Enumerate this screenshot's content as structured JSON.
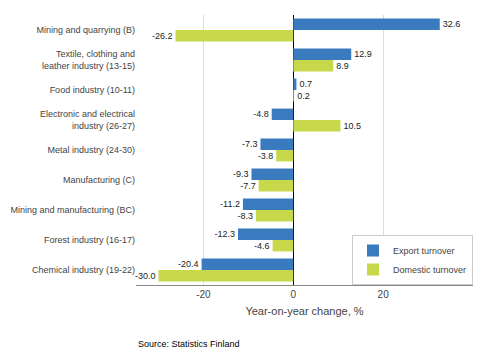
{
  "chart_data": {
    "type": "bar",
    "orientation": "horizontal",
    "categories": [
      "Chemical industry (19-22)",
      "Forest industry (16-17)",
      "Mining and manufacturing (BC)",
      "Manufacturing (C)",
      "Metal industry (24-30)",
      "Electronic and electrical\nindustry (26-27)",
      "Food industry (10-11)",
      "Textile, clothing and\nleather industry (13-15)",
      "Mining and quarrying (B)"
    ],
    "series": [
      {
        "name": "Export turnover",
        "color": "#3a7abf",
        "values": [
          -20.4,
          -12.3,
          -11.2,
          -9.3,
          -7.3,
          -4.8,
          0.7,
          12.9,
          32.6
        ],
        "value_labels": [
          "-20.4",
          "-12.3",
          "-11.2",
          "-9.3",
          "-7.3",
          "-4.8",
          "0.7",
          "12.9",
          "32.6"
        ]
      },
      {
        "name": "Domestic turnover",
        "color": "#c8d84b",
        "values": [
          -30.0,
          -4.6,
          -8.3,
          -7.7,
          -3.8,
          10.5,
          0.2,
          8.9,
          -26.2
        ],
        "value_labels": [
          "-30.0",
          "-4.6",
          "-8.3",
          "-7.7",
          "-3.8",
          "10.5",
          "0.2",
          "8.9",
          "-26.2"
        ]
      }
    ],
    "xlabel": "Year-on-year change, %",
    "xlim": [
      -35,
      40
    ],
    "xticks": [
      -20,
      0,
      20
    ],
    "grid": true,
    "legend": "lower right",
    "data_labels": true,
    "annotations": [
      "Source: Statistics Finland"
    ]
  }
}
